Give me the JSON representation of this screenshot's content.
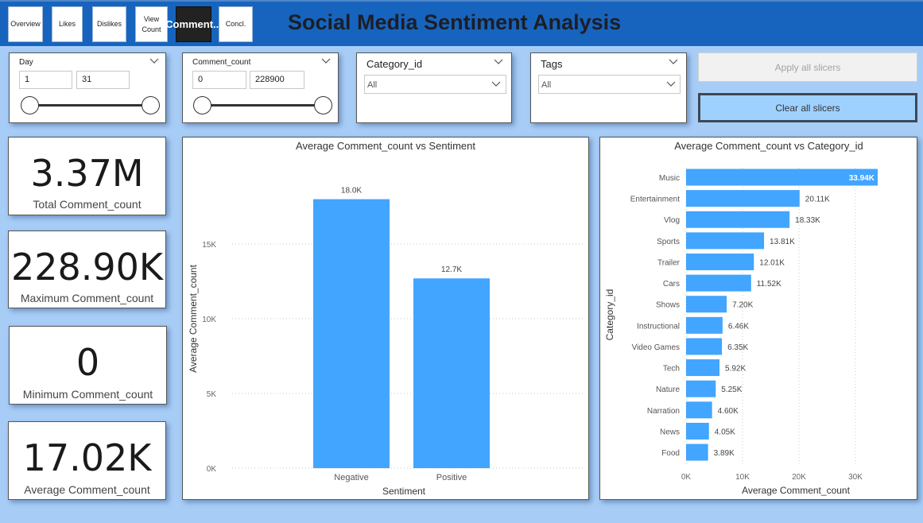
{
  "nav": [
    {
      "id": "overview",
      "label": "Overview"
    },
    {
      "id": "likes",
      "label": "Likes"
    },
    {
      "id": "dislikes",
      "label": "Dislikes"
    },
    {
      "id": "view-count",
      "label": "View Count"
    },
    {
      "id": "comment",
      "label": "Comment..."
    },
    {
      "id": "concl",
      "label": "Concl."
    }
  ],
  "active_nav": "comment",
  "title": "Social Media Sentiment Analysis",
  "slicers": {
    "day": {
      "label": "Day",
      "min": "1",
      "max": "31"
    },
    "comment_count": {
      "label": "Comment_count",
      "min": "0",
      "max": "228900"
    },
    "category": {
      "label": "Category_id",
      "value": "All"
    },
    "tags": {
      "label": "Tags",
      "value": "All"
    }
  },
  "buttons": {
    "apply": "Apply all slicers",
    "clear": "Clear all slicers"
  },
  "kpis": [
    {
      "value": "3.37M",
      "label": "Total Comment_count"
    },
    {
      "value": "228.90K",
      "label": "Maximum Comment_count"
    },
    {
      "value": "0",
      "label": "Minimum Comment_count"
    },
    {
      "value": "17.02K",
      "label": "Average Comment_count"
    }
  ],
  "colors": {
    "header": "#1764be",
    "background": "#a7cdf7",
    "bar": "#42a5ff",
    "active_nav": "#222222",
    "clear_button": "#9fd1ff"
  },
  "icons": [
    "chevron-down-icon"
  ],
  "chart_data": [
    {
      "type": "bar",
      "title": "Average Comment_count vs Sentiment",
      "xlabel": "Sentiment",
      "ylabel": "Average Comment_count",
      "categories": [
        "Negative",
        "Positive"
      ],
      "values": [
        18000,
        12700
      ],
      "data_labels": [
        "18.0K",
        "12.7K"
      ],
      "yticks": [
        "0K",
        "5K",
        "10K",
        "15K"
      ],
      "ylim": [
        0,
        20000
      ],
      "grid": true
    },
    {
      "type": "bar",
      "orientation": "horizontal",
      "title": "Average Comment_count vs Category_id",
      "xlabel": "Average Comment_count",
      "ylabel": "Category_id",
      "categories": [
        "Music",
        "Entertainment",
        "Vlog",
        "Sports",
        "Trailer",
        "Cars",
        "Shows",
        "Instructional",
        "Video Games",
        "Tech",
        "Nature",
        "Narration",
        "News",
        "Food"
      ],
      "values": [
        33940,
        20110,
        18330,
        13810,
        12010,
        11520,
        7200,
        6460,
        6350,
        5920,
        5250,
        4600,
        4050,
        3890
      ],
      "data_labels": [
        "33.94K",
        "20.11K",
        "18.33K",
        "13.81K",
        "12.01K",
        "11.52K",
        "7.20K",
        "6.46K",
        "6.35K",
        "5.92K",
        "5.25K",
        "4.60K",
        "4.05K",
        "3.89K"
      ],
      "xticks": [
        "0K",
        "10K",
        "20K",
        "30K"
      ],
      "xlim": [
        0,
        35000
      ],
      "grid": true
    }
  ]
}
